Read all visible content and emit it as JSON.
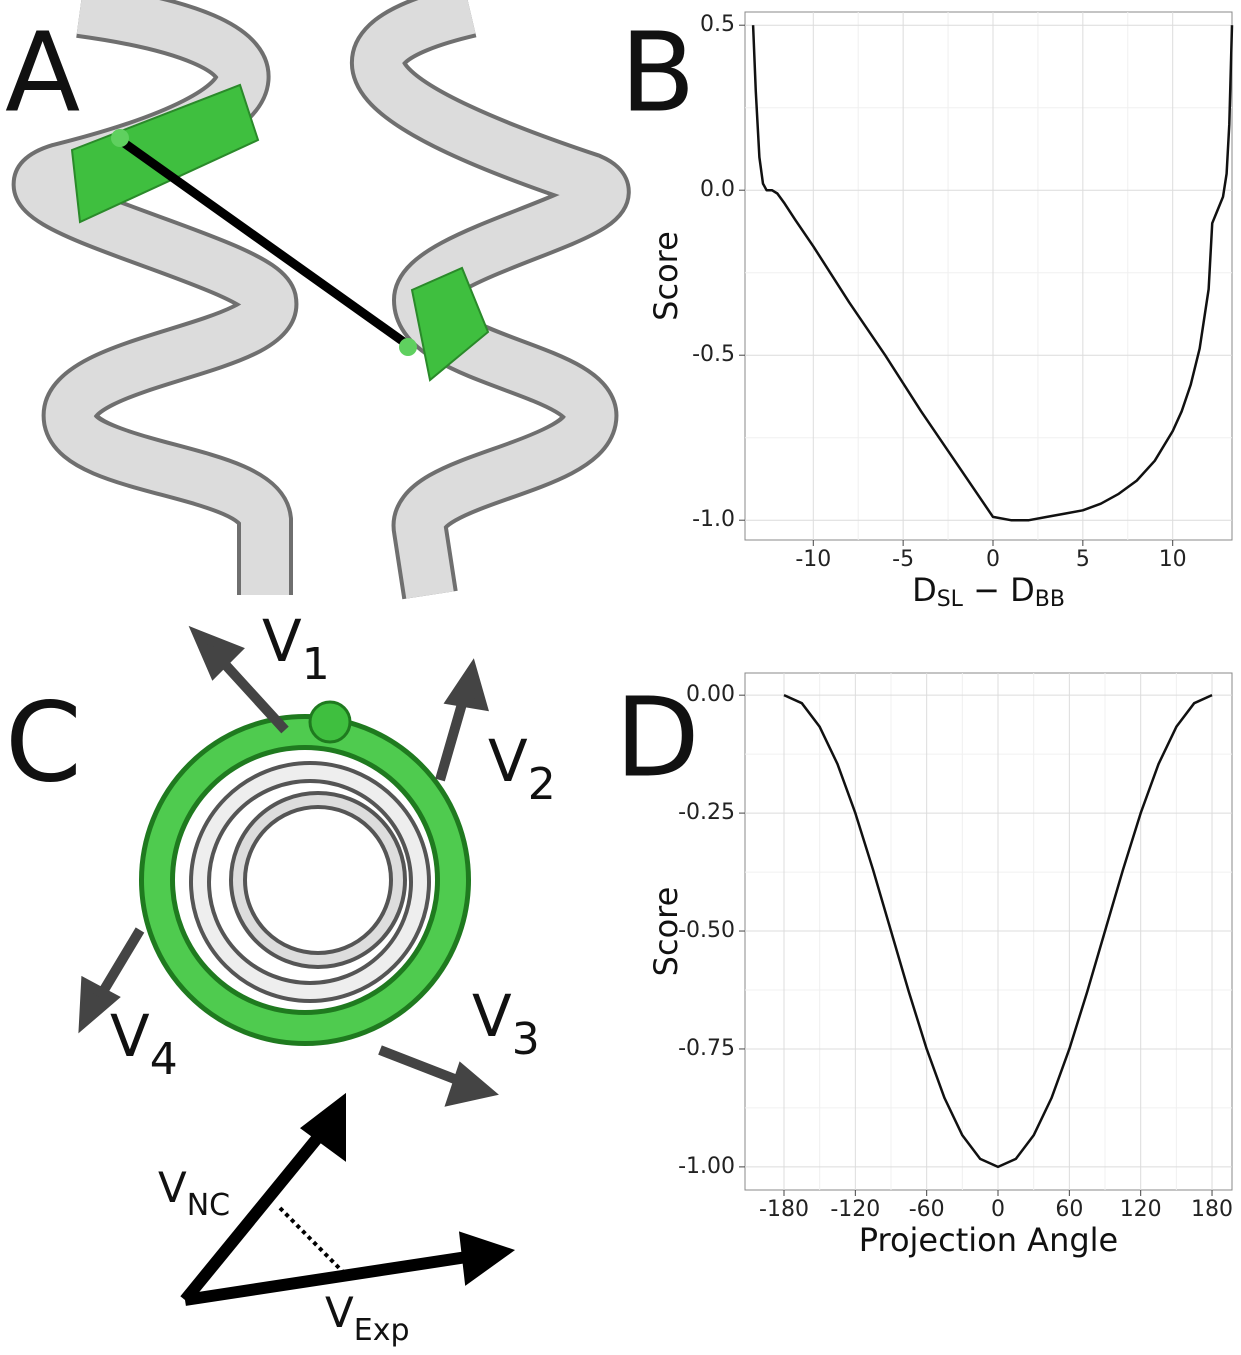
{
  "panel_labels": [
    "A",
    "B",
    "C",
    "D"
  ],
  "panel_c": {
    "vectors": [
      {
        "main": "V",
        "sub": "1"
      },
      {
        "main": "V",
        "sub": "2"
      },
      {
        "main": "V",
        "sub": "3"
      },
      {
        "main": "V",
        "sub": "4"
      }
    ],
    "v_nc": {
      "main": "V",
      "sub": "NC"
    },
    "v_exp": {
      "main": "V",
      "sub": "Exp"
    }
  },
  "chart_data": [
    {
      "type": "line",
      "y_label": "Score",
      "x_label": [
        {
          "main": "D",
          "sub": "SL"
        },
        {
          "main": " − "
        },
        {
          "main": "D",
          "sub": "BB"
        }
      ],
      "x": [
        -13.35,
        -13.2,
        -13.0,
        -12.8,
        -12.6,
        -12.3,
        -12.0,
        -11.6,
        -11.0,
        -10.0,
        -8.0,
        -6.0,
        -4.0,
        -2.0,
        0.0,
        1.0,
        2.0,
        3.0,
        4.0,
        5.0,
        6.0,
        7.0,
        8.0,
        9.0,
        10.0,
        10.5,
        11.0,
        11.5,
        12.0,
        12.2,
        12.5,
        12.8,
        13.0,
        13.15,
        13.3
      ],
      "series": [
        {
          "color": "#111111",
          "values": [
            0.5,
            0.3,
            0.1,
            0.02,
            0.0,
            0.0,
            -0.01,
            -0.04,
            -0.09,
            -0.17,
            -0.34,
            -0.5,
            -0.67,
            -0.83,
            -0.99,
            -1.0,
            -1.0,
            -0.99,
            -0.98,
            -0.97,
            -0.95,
            -0.92,
            -0.88,
            -0.82,
            -0.73,
            -0.67,
            -0.59,
            -0.48,
            -0.3,
            -0.1,
            -0.06,
            -0.02,
            0.05,
            0.2,
            0.5
          ]
        }
      ],
      "xlim": [
        -13.8,
        13.3
      ],
      "ylim": [
        -1.06,
        0.54
      ],
      "xticks": [
        -10,
        -5,
        0,
        5,
        10
      ],
      "yticks": [
        0.5,
        {
          "value": 0,
          "label": "0.0"
        },
        -0.5,
        {
          "value": -1,
          "label": "-1.0"
        }
      ],
      "grid": true,
      "minor_grid": true
    },
    {
      "type": "line",
      "y_label": "Score",
      "x_label": [
        {
          "main": "Projection Angle"
        }
      ],
      "x": [
        -180,
        -165,
        -150,
        -135,
        -120,
        -105,
        -90,
        -75,
        -60,
        -45,
        -30,
        -15,
        0,
        15,
        30,
        45,
        60,
        75,
        90,
        105,
        120,
        135,
        150,
        165,
        180
      ],
      "series": [
        {
          "color": "#111111",
          "values": [
            0,
            -0.017,
            -0.067,
            -0.146,
            -0.25,
            -0.371,
            -0.5,
            -0.629,
            -0.75,
            -0.854,
            -0.933,
            -0.983,
            -1,
            -0.983,
            -0.933,
            -0.854,
            -0.75,
            -0.629,
            -0.5,
            -0.371,
            -0.25,
            -0.146,
            -0.067,
            -0.017,
            0
          ]
        }
      ],
      "xlim": [
        -212.8,
        196.8
      ],
      "ylim": [
        -1.049,
        0.047
      ],
      "xticks": [
        -180,
        -120,
        -60,
        0,
        60,
        120,
        180
      ],
      "yticks": [
        {
          "value": 0,
          "label": "0.00"
        },
        -0.25,
        {
          "value": -0.5,
          "label": "-0.50"
        },
        -0.75,
        {
          "value": -1,
          "label": "-1.00"
        }
      ],
      "grid": true,
      "minor_grid": true
    }
  ]
}
